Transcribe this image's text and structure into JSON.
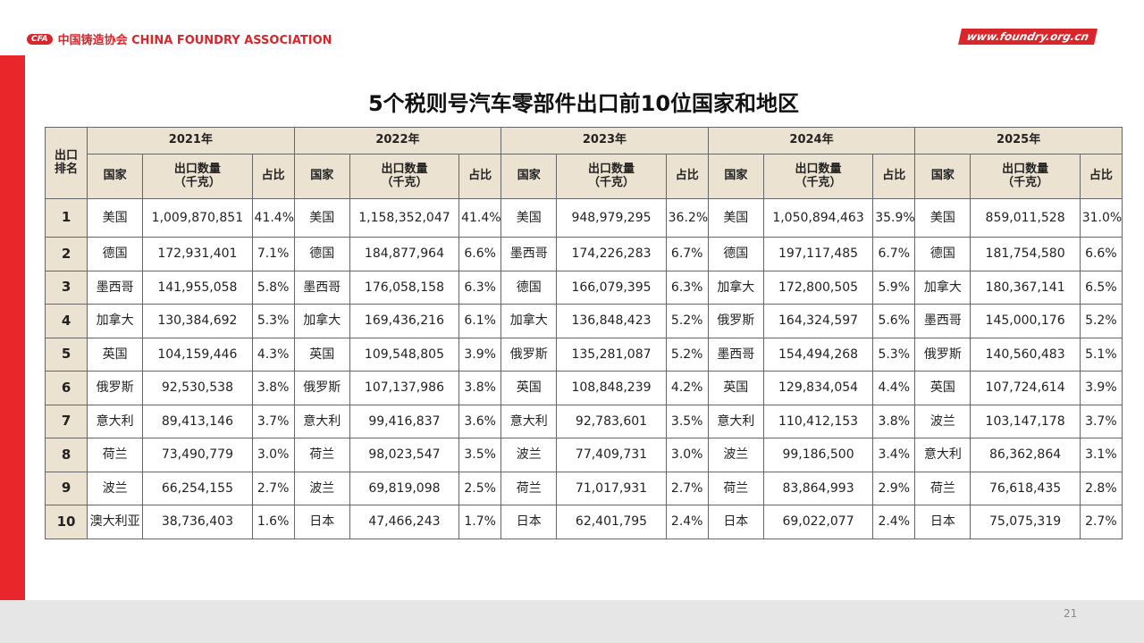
{
  "header": {
    "logo_mark": "CFA",
    "logo_text": "中国铸造协会 CHINA FOUNDRY ASSOCIATION",
    "url": "www.foundry.org.cn"
  },
  "title": "5个税则号汽车零部件出口前10位国家和地区",
  "table": {
    "rank_header": "出口\n排名",
    "years": [
      "2021年",
      "2022年",
      "2023年",
      "2024年",
      "2025年"
    ],
    "sub_headers": [
      "国家",
      "出口数量\n（千克）",
      "占比"
    ],
    "rows": [
      [
        "1",
        "美国",
        "1,009,870,851",
        "41.4%",
        "美国",
        "1,158,352,047",
        "41.4%",
        "美国",
        "948,979,295",
        "36.2%",
        "美国",
        "1,050,894,463",
        "35.9%",
        "美国",
        "859,011,528",
        "31.0%"
      ],
      [
        "2",
        "德国",
        "172,931,401",
        "7.1%",
        "德国",
        "184,877,964",
        "6.6%",
        "墨西哥",
        "174,226,283",
        "6.7%",
        "德国",
        "197,117,485",
        "6.7%",
        "德国",
        "181,754,580",
        "6.6%"
      ],
      [
        "3",
        "墨西哥",
        "141,955,058",
        "5.8%",
        "墨西哥",
        "176,058,158",
        "6.3%",
        "德国",
        "166,079,395",
        "6.3%",
        "加拿大",
        "172,800,505",
        "5.9%",
        "加拿大",
        "180,367,141",
        "6.5%"
      ],
      [
        "4",
        "加拿大",
        "130,384,692",
        "5.3%",
        "加拿大",
        "169,436,216",
        "6.1%",
        "加拿大",
        "136,848,423",
        "5.2%",
        "俄罗斯",
        "164,324,597",
        "5.6%",
        "墨西哥",
        "145,000,176",
        "5.2%"
      ],
      [
        "5",
        "英国",
        "104,159,446",
        "4.3%",
        "英国",
        "109,548,805",
        "3.9%",
        "俄罗斯",
        "135,281,087",
        "5.2%",
        "墨西哥",
        "154,494,268",
        "5.3%",
        "俄罗斯",
        "140,560,483",
        "5.1%"
      ],
      [
        "6",
        "俄罗斯",
        "92,530,538",
        "3.8%",
        "俄罗斯",
        "107,137,986",
        "3.8%",
        "英国",
        "108,848,239",
        "4.2%",
        "英国",
        "129,834,054",
        "4.4%",
        "英国",
        "107,724,614",
        "3.9%"
      ],
      [
        "7",
        "意大利",
        "89,413,146",
        "3.7%",
        "意大利",
        "99,416,837",
        "3.6%",
        "意大利",
        "92,783,601",
        "3.5%",
        "意大利",
        "110,412,153",
        "3.8%",
        "波兰",
        "103,147,178",
        "3.7%"
      ],
      [
        "8",
        "荷兰",
        "73,490,779",
        "3.0%",
        "荷兰",
        "98,023,547",
        "3.5%",
        "波兰",
        "77,409,731",
        "3.0%",
        "波兰",
        "99,186,500",
        "3.4%",
        "意大利",
        "86,362,864",
        "3.1%"
      ],
      [
        "9",
        "波兰",
        "66,254,155",
        "2.7%",
        "波兰",
        "69,819,098",
        "2.5%",
        "荷兰",
        "71,017,931",
        "2.7%",
        "荷兰",
        "83,864,993",
        "2.9%",
        "荷兰",
        "76,618,435",
        "2.8%"
      ],
      [
        "10",
        "澳大利亚",
        "38,736,403",
        "1.6%",
        "日本",
        "47,466,243",
        "1.7%",
        "日本",
        "62,401,795",
        "2.4%",
        "日本",
        "69,022,077",
        "2.4%",
        "日本",
        "75,075,319",
        "2.7%"
      ]
    ]
  },
  "page_number": "21"
}
